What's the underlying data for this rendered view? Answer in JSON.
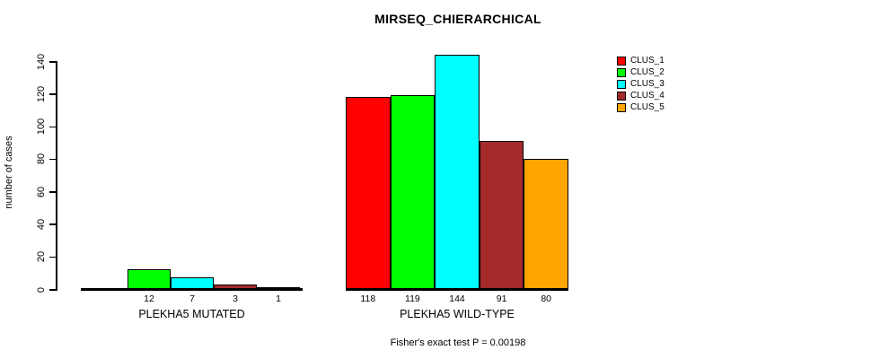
{
  "chart_data": {
    "type": "bar",
    "title": "MIRSEQ_CHIERARCHICAL",
    "ylabel": "number of cases",
    "xlabel": "",
    "ylim": [
      0,
      140
    ],
    "yticks": [
      0,
      20,
      40,
      60,
      80,
      100,
      120,
      140
    ],
    "grid": false,
    "footnote": "Fisher's exact test P = 0.00198",
    "legend": {
      "position": "top-right",
      "entries": [
        {
          "label": "CLUS_1",
          "color": "#FF0000"
        },
        {
          "label": "CLUS_2",
          "color": "#00FF00"
        },
        {
          "label": "CLUS_3",
          "color": "#00FFFF"
        },
        {
          "label": "CLUS_4",
          "color": "#A52A2A"
        },
        {
          "label": "CLUS_5",
          "color": "#FFA500"
        }
      ]
    },
    "series_colors": [
      "#FF0000",
      "#00FF00",
      "#00FFFF",
      "#A52A2A",
      "#FFA500"
    ],
    "groups": [
      {
        "label": "PLEKHA5 MUTATED",
        "values": [
          0,
          12,
          7,
          3,
          1
        ],
        "value_labels": [
          "",
          "12",
          "7",
          "3",
          "1"
        ]
      },
      {
        "label": "PLEKHA5 WILD-TYPE",
        "values": [
          118,
          119,
          144,
          91,
          80
        ],
        "value_labels": [
          "118",
          "119",
          "144",
          "91",
          "80"
        ]
      }
    ],
    "colors": {
      "background": "#FFFFFF",
      "text": "#000000",
      "axis": "#000000"
    }
  }
}
